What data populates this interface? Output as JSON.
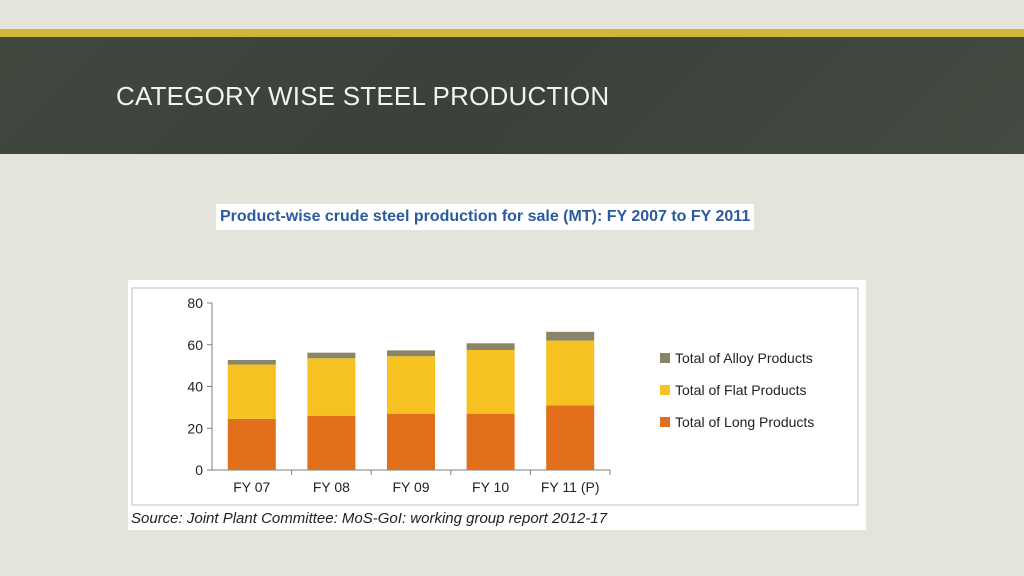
{
  "slide": {
    "title": "CATEGORY WISE STEEL PRODUCTION",
    "chart_heading": "Product-wise crude steel production for sale (MT): FY 2007 to FY 2011",
    "source": "Source: Joint Plant Committee: MoS-GoI: working group report 2012-17"
  },
  "colors": {
    "accent_stripe": "#d2b63a",
    "title_band": "#3d453c",
    "heading_text": "#2a5aa0"
  },
  "chart_data": {
    "type": "bar",
    "stacked": true,
    "categories": [
      "FY 07",
      "FY 08",
      "FY 09",
      "FY 10",
      "FY 11 (P)"
    ],
    "series": [
      {
        "name": "Total of Long Products",
        "color": "#e26f1c",
        "values": [
          24.5,
          26,
          27,
          27,
          31
        ]
      },
      {
        "name": "Total of Flat Products",
        "color": "#f5c221",
        "values": [
          26,
          27.5,
          27.5,
          30.5,
          31
        ]
      },
      {
        "name": "Total of Alloy Products",
        "color": "#8a8468",
        "values": [
          2.2,
          2.7,
          2.8,
          3.2,
          4.2
        ]
      }
    ],
    "ylim": [
      0,
      80
    ],
    "yticks": [
      0,
      20,
      40,
      60,
      80
    ],
    "legend_position": "right",
    "legend_order": [
      "Total of Alloy Products",
      "Total of Flat Products",
      "Total of Long Products"
    ],
    "grid": false
  }
}
